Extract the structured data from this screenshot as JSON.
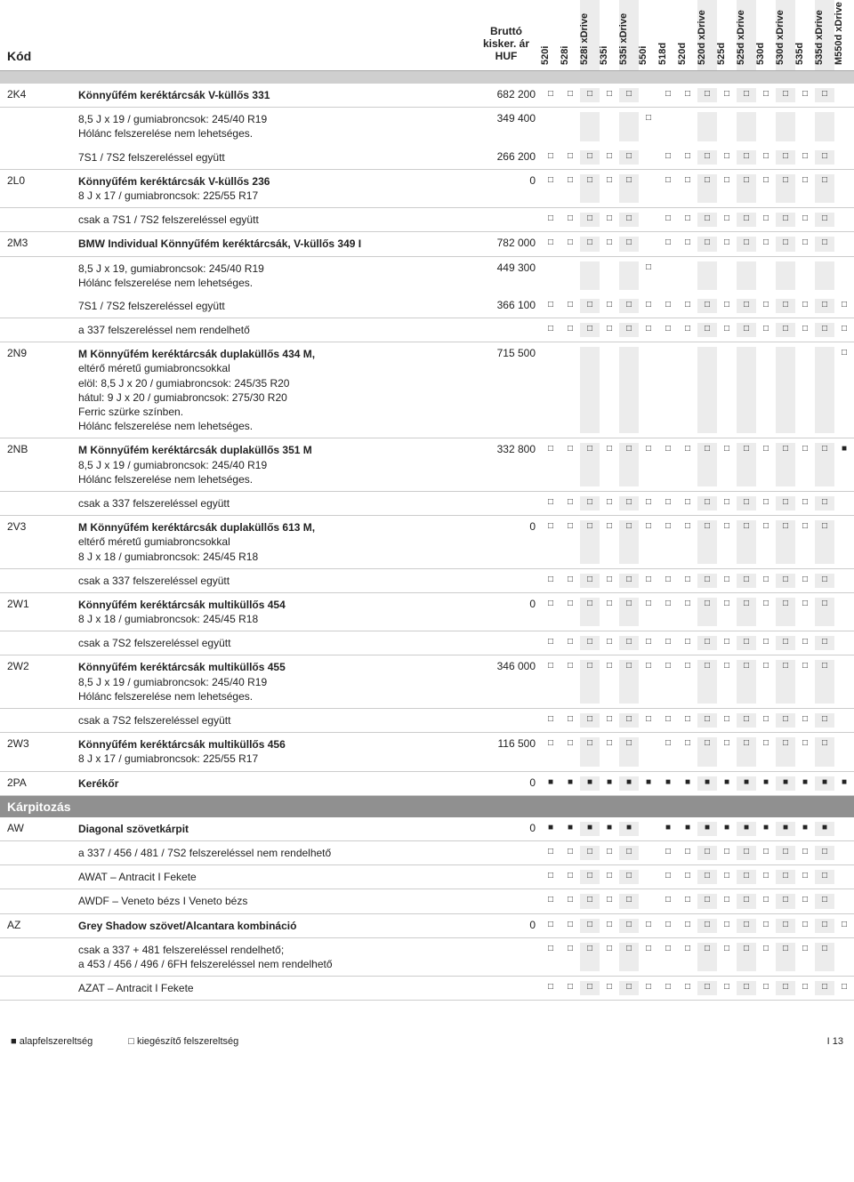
{
  "header": {
    "kod": "Kód",
    "price": "Bruttó kisker. ár HUF",
    "models": [
      "520i",
      "528i",
      "528i xDrive",
      "535i",
      "535i xDrive",
      "550i",
      "518d",
      "520d",
      "520d xDrive",
      "525d",
      "525d xDrive",
      "530d",
      "530d xDrive",
      "535d",
      "535d xDrive",
      "M550d xDrive"
    ],
    "shade": [
      0,
      0,
      1,
      0,
      1,
      0,
      0,
      0,
      1,
      0,
      1,
      0,
      1,
      0,
      1,
      0
    ]
  },
  "rows": [
    {
      "code": "2K4",
      "bold": "Könnyűfém keréktárcsák V-küllős 331",
      "sub": [],
      "price": "682 200",
      "marks": [
        "□",
        "□",
        "□",
        "□",
        "□",
        "",
        "□",
        "□",
        "□",
        "□",
        "□",
        "□",
        "□",
        "□",
        "□",
        ""
      ]
    },
    {
      "code": "",
      "bold": "",
      "sub": [
        "8,5 J x 19 / gumiabroncsok: 245/40 R19",
        "Hólánc felszerelése nem lehetséges."
      ],
      "price": "349 400",
      "marks": [
        "",
        "",
        "",
        "",
        "",
        "□",
        "",
        "",
        "",
        "",
        "",
        "",
        "",
        "",
        "",
        ""
      ],
      "noborder": true
    },
    {
      "code": "",
      "bold": "",
      "sub": [
        "7S1 / 7S2 felszereléssel együtt"
      ],
      "price": "266 200",
      "marks": [
        "□",
        "□",
        "□",
        "□",
        "□",
        "",
        "□",
        "□",
        "□",
        "□",
        "□",
        "□",
        "□",
        "□",
        "□",
        ""
      ]
    },
    {
      "code": "2L0",
      "bold": "Könnyűfém keréktárcsák V-küllős 236",
      "sub": [
        "8 J x 17 / gumiabroncsok: 225/55 R17"
      ],
      "price": "0",
      "marks": [
        "□",
        "□",
        "□",
        "□",
        "□",
        "",
        "□",
        "□",
        "□",
        "□",
        "□",
        "□",
        "□",
        "□",
        "□",
        ""
      ]
    },
    {
      "code": "",
      "bold": "",
      "sub": [
        "csak a 7S1 / 7S2 felszereléssel együtt"
      ],
      "price": "",
      "marks": [
        "□",
        "□",
        "□",
        "□",
        "□",
        "",
        "□",
        "□",
        "□",
        "□",
        "□",
        "□",
        "□",
        "□",
        "□",
        ""
      ]
    },
    {
      "code": "2M3",
      "bold": "BMW Individual Könnyűfém keréktárcsák, V-küllős 349 I",
      "sub": [],
      "price": "782 000",
      "marks": [
        "□",
        "□",
        "□",
        "□",
        "□",
        "",
        "□",
        "□",
        "□",
        "□",
        "□",
        "□",
        "□",
        "□",
        "□",
        ""
      ]
    },
    {
      "code": "",
      "bold": "",
      "sub": [
        "8,5 J x 19, gumiabroncsok: 245/40 R19",
        "Hólánc felszerelése nem lehetséges."
      ],
      "price": "449 300",
      "marks": [
        "",
        "",
        "",
        "",
        "",
        "□",
        "",
        "",
        "",
        "",
        "",
        "",
        "",
        "",
        "",
        ""
      ],
      "noborder": true
    },
    {
      "code": "",
      "bold": "",
      "sub": [
        "7S1 / 7S2 felszereléssel együtt"
      ],
      "price": "366 100",
      "marks": [
        "□",
        "□",
        "□",
        "□",
        "□",
        "□",
        "□",
        "□",
        "□",
        "□",
        "□",
        "□",
        "□",
        "□",
        "□",
        "□"
      ]
    },
    {
      "code": "",
      "bold": "",
      "sub": [
        "a 337 felszereléssel nem rendelhető"
      ],
      "price": "",
      "marks": [
        "□",
        "□",
        "□",
        "□",
        "□",
        "□",
        "□",
        "□",
        "□",
        "□",
        "□",
        "□",
        "□",
        "□",
        "□",
        "□"
      ]
    },
    {
      "code": "2N9",
      "bold": "M Könnyűfém keréktárcsák duplaküllős 434 M,",
      "sub": [
        "eltérő méretű gumiabroncsokkal",
        "elöl: 8,5 J x 20 / gumiabroncsok: 245/35 R20",
        "hátul: 9 J x 20 / gumiabroncsok: 275/30 R20",
        "Ferric szürke színben.",
        "Hólánc felszerelése nem lehetséges."
      ],
      "price": "715 500",
      "marks": [
        "",
        "",
        "",
        "",
        "",
        "",
        "",
        "",
        "",
        "",
        "",
        "",
        "",
        "",
        "",
        "□"
      ]
    },
    {
      "code": "2NB",
      "bold": "M Könnyűfém keréktárcsák duplaküllős 351 M",
      "sub": [
        "8,5 J x 19 / gumiabroncsok: 245/40 R19",
        "Hólánc felszerelése nem lehetséges."
      ],
      "price": "332 800",
      "marks": [
        "□",
        "□",
        "□",
        "□",
        "□",
        "□",
        "□",
        "□",
        "□",
        "□",
        "□",
        "□",
        "□",
        "□",
        "□",
        "■"
      ]
    },
    {
      "code": "",
      "bold": "",
      "sub": [
        "csak a 337 felszereléssel együtt"
      ],
      "price": "",
      "marks": [
        "□",
        "□",
        "□",
        "□",
        "□",
        "□",
        "□",
        "□",
        "□",
        "□",
        "□",
        "□",
        "□",
        "□",
        "□",
        ""
      ]
    },
    {
      "code": "2V3",
      "bold": "M Könnyűfém keréktárcsák duplaküllős 613 M,",
      "sub": [
        "eltérő méretű gumiabroncsokkal",
        "8 J x 18 / gumiabroncsok: 245/45 R18"
      ],
      "price": "0",
      "marks": [
        "□",
        "□",
        "□",
        "□",
        "□",
        "□",
        "□",
        "□",
        "□",
        "□",
        "□",
        "□",
        "□",
        "□",
        "□",
        ""
      ]
    },
    {
      "code": "",
      "bold": "",
      "sub": [
        "csak a 337 felszereléssel együtt"
      ],
      "price": "",
      "marks": [
        "□",
        "□",
        "□",
        "□",
        "□",
        "□",
        "□",
        "□",
        "□",
        "□",
        "□",
        "□",
        "□",
        "□",
        "□",
        ""
      ]
    },
    {
      "code": "2W1",
      "bold": "Könnyűfém keréktárcsák multiküllős 454",
      "sub": [
        "8 J x 18 / gumiabroncsok: 245/45 R18"
      ],
      "price": "0",
      "marks": [
        "□",
        "□",
        "□",
        "□",
        "□",
        "□",
        "□",
        "□",
        "□",
        "□",
        "□",
        "□",
        "□",
        "□",
        "□",
        ""
      ]
    },
    {
      "code": "",
      "bold": "",
      "sub": [
        "csak a 7S2 felszereléssel együtt"
      ],
      "price": "",
      "marks": [
        "□",
        "□",
        "□",
        "□",
        "□",
        "□",
        "□",
        "□",
        "□",
        "□",
        "□",
        "□",
        "□",
        "□",
        "□",
        ""
      ]
    },
    {
      "code": "2W2",
      "bold": "Könnyűfém keréktárcsák multiküllős 455",
      "sub": [
        "8,5 J x 19 / gumiabroncsok: 245/40 R19",
        "Hólánc felszerelése nem lehetséges."
      ],
      "price": "346 000",
      "marks": [
        "□",
        "□",
        "□",
        "□",
        "□",
        "□",
        "□",
        "□",
        "□",
        "□",
        "□",
        "□",
        "□",
        "□",
        "□",
        ""
      ]
    },
    {
      "code": "",
      "bold": "",
      "sub": [
        "csak a 7S2 felszereléssel együtt"
      ],
      "price": "",
      "marks": [
        "□",
        "□",
        "□",
        "□",
        "□",
        "□",
        "□",
        "□",
        "□",
        "□",
        "□",
        "□",
        "□",
        "□",
        "□",
        ""
      ]
    },
    {
      "code": "2W3",
      "bold": "Könnyűfém keréktárcsák multiküllős 456",
      "sub": [
        "8 J x 17 / gumiabroncsok: 225/55 R17"
      ],
      "price": "116 500",
      "marks": [
        "□",
        "□",
        "□",
        "□",
        "□",
        "",
        "□",
        "□",
        "□",
        "□",
        "□",
        "□",
        "□",
        "□",
        "□",
        ""
      ]
    },
    {
      "code": "2PA",
      "bold": "Kerékőr",
      "sub": [],
      "price": "0",
      "marks": [
        "■",
        "■",
        "■",
        "■",
        "■",
        "■",
        "■",
        "■",
        "■",
        "■",
        "■",
        "■",
        "■",
        "■",
        "■",
        "■"
      ]
    }
  ],
  "section": "Kárpitozás",
  "rows2": [
    {
      "code": "AW",
      "bold": "Diagonal szövetkárpit",
      "sub": [],
      "price": "0",
      "marks": [
        "■",
        "■",
        "■",
        "■",
        "■",
        "",
        "■",
        "■",
        "■",
        "■",
        "■",
        "■",
        "■",
        "■",
        "■",
        ""
      ]
    },
    {
      "code": "",
      "bold": "",
      "sub": [
        "a 337 / 456 / 481 / 7S2 felszereléssel nem rendelhető"
      ],
      "price": "",
      "marks": [
        "□",
        "□",
        "□",
        "□",
        "□",
        "",
        "□",
        "□",
        "□",
        "□",
        "□",
        "□",
        "□",
        "□",
        "□",
        ""
      ]
    },
    {
      "code": "",
      "bold": "",
      "sub": [
        "AWAT – Antracit I Fekete"
      ],
      "price": "",
      "marks": [
        "□",
        "□",
        "□",
        "□",
        "□",
        "",
        "□",
        "□",
        "□",
        "□",
        "□",
        "□",
        "□",
        "□",
        "□",
        ""
      ]
    },
    {
      "code": "",
      "bold": "",
      "sub": [
        "AWDF – Veneto bézs I Veneto bézs"
      ],
      "price": "",
      "marks": [
        "□",
        "□",
        "□",
        "□",
        "□",
        "",
        "□",
        "□",
        "□",
        "□",
        "□",
        "□",
        "□",
        "□",
        "□",
        ""
      ]
    },
    {
      "code": "AZ",
      "bold": "Grey Shadow szövet/Alcantara kombináció",
      "sub": [],
      "price": "0",
      "marks": [
        "□",
        "□",
        "□",
        "□",
        "□",
        "□",
        "□",
        "□",
        "□",
        "□",
        "□",
        "□",
        "□",
        "□",
        "□",
        "□"
      ]
    },
    {
      "code": "",
      "bold": "",
      "sub": [
        "csak a 337 + 481 felszereléssel rendelhető;",
        "a 453 / 456 / 496 / 6FH felszereléssel nem rendelhető"
      ],
      "price": "",
      "marks": [
        "□",
        "□",
        "□",
        "□",
        "□",
        "□",
        "□",
        "□",
        "□",
        "□",
        "□",
        "□",
        "□",
        "□",
        "□",
        ""
      ]
    },
    {
      "code": "",
      "bold": "",
      "sub": [
        "AZAT – Antracit I Fekete"
      ],
      "price": "",
      "marks": [
        "□",
        "□",
        "□",
        "□",
        "□",
        "□",
        "□",
        "□",
        "□",
        "□",
        "□",
        "□",
        "□",
        "□",
        "□",
        "□"
      ]
    }
  ],
  "footer": {
    "legend1": "■ alapfelszereltség",
    "legend2": "□ kiegészítő felszereltség",
    "page": "I 13"
  }
}
